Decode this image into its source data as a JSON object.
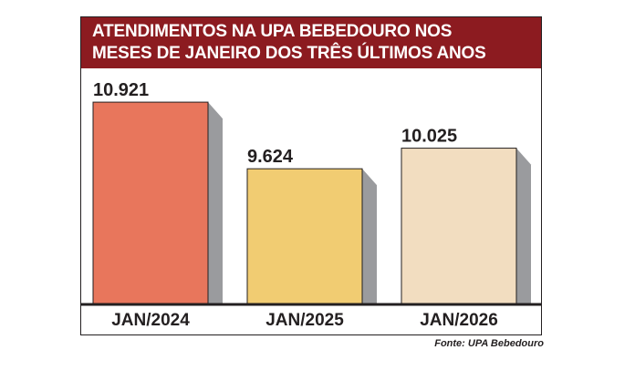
{
  "chart_data": {
    "type": "bar",
    "title_lines": [
      "ATENDIMENTOS NA UPA BEBEDOURO NOS",
      "MESES DE JANEIRO DOS TRÊS ÚLTIMOS ANOS"
    ],
    "categories": [
      "JAN/2024",
      "JAN/2025",
      "JAN/2026"
    ],
    "values": [
      10921,
      9624,
      10025
    ],
    "value_labels": [
      "10.921",
      "9.624",
      "10.025"
    ],
    "bar_colors": [
      "#e8765c",
      "#f1cc72",
      "#f2ddc0"
    ],
    "shadow_color": "#9a9b9e",
    "title_bg_color": "#8c1b20",
    "ylim": [
      7000,
      11100
    ],
    "grid": false,
    "legend": false
  },
  "source": "Fonte: UPA Bebedouro"
}
